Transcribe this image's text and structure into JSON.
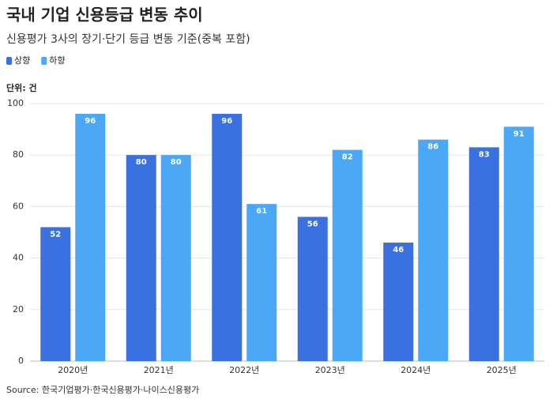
{
  "chart_data": {
    "type": "bar",
    "title": "국내 기업 신용등급 변동 추이",
    "subtitle": "신용평가 3사의 장기·단기 등급 변동 기준(중복 포함)",
    "unit_label": "단위: 건",
    "source": "Source: 한국기업평가·한국신용평가·나이스신용평가",
    "categories": [
      "2020년",
      "2021년",
      "2022년",
      "2023년",
      "2024년",
      "2025년"
    ],
    "series": [
      {
        "name": "상향",
        "color": "#3a70df",
        "values": [
          52,
          80,
          96,
          56,
          46,
          83
        ]
      },
      {
        "name": "하향",
        "color": "#4aa8f6",
        "values": [
          96,
          80,
          61,
          82,
          86,
          91
        ]
      }
    ],
    "ylim": [
      0,
      100
    ],
    "yticks": [
      0,
      20,
      40,
      60,
      80,
      100
    ],
    "grid": true,
    "legend": "top-left"
  }
}
